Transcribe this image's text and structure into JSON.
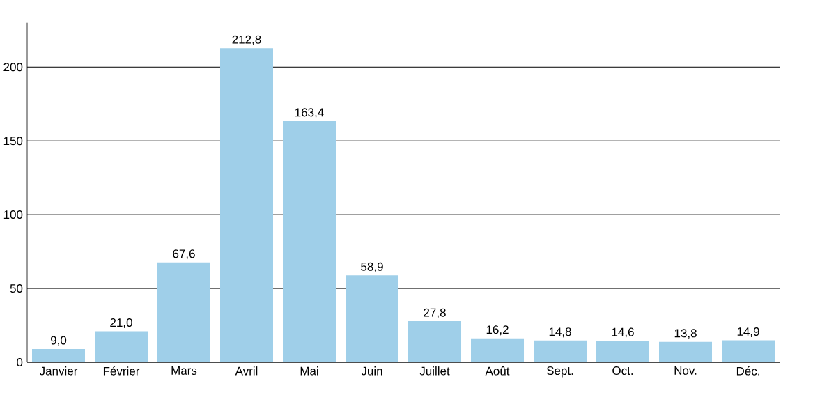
{
  "chart_data": {
    "type": "bar",
    "categories": [
      "Janvier",
      "Février",
      "Mars",
      "Avril",
      "Mai",
      "Juin",
      "Juillet",
      "Août",
      "Sept.",
      "Oct.",
      "Nov.",
      "Déc."
    ],
    "values": [
      9.0,
      21.0,
      67.6,
      212.8,
      163.4,
      58.9,
      27.8,
      16.2,
      14.8,
      14.6,
      13.8,
      14.9
    ],
    "value_labels": [
      "9,0",
      "21,0",
      "67,6",
      "212,8",
      "163,4",
      "58,9",
      "27,8",
      "16,2",
      "14,8",
      "14,6",
      "13,8",
      "14,9"
    ],
    "color": "#9fcfe9",
    "ylim": [
      0,
      230
    ],
    "yticks": [
      0,
      50,
      100,
      150,
      200
    ],
    "grid": "y"
  }
}
